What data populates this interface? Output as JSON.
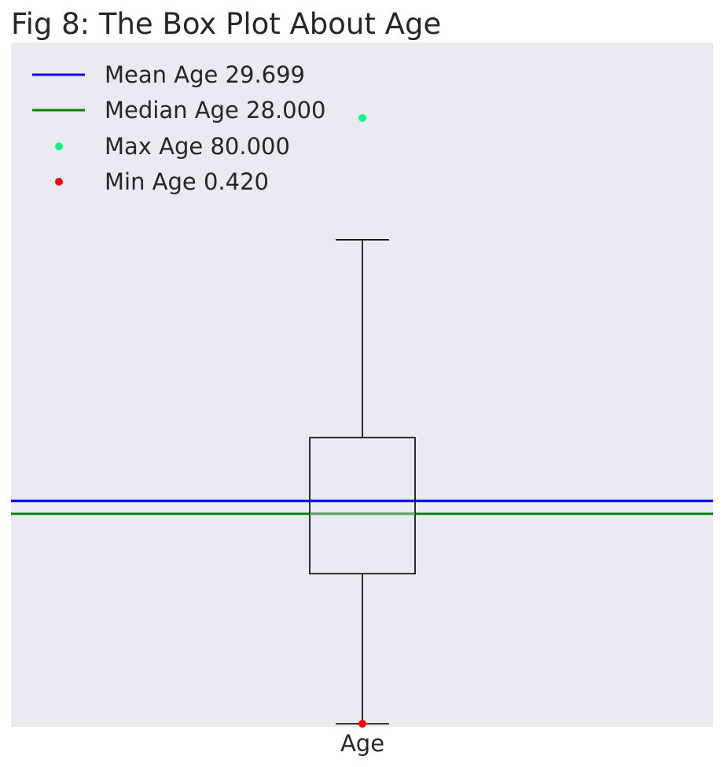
{
  "colors": {
    "plot_background": "#EAEAF2",
    "box_stroke": "#000000",
    "mean_line": "#0000FF",
    "median_line": "#008000",
    "max_marker": "#00FF7F",
    "min_marker": "#FF0000",
    "inner_median": "#6EA06E"
  },
  "chart_data": {
    "type": "box",
    "title": "Fig 8: The Box Plot About Age",
    "xlabel": "",
    "ylabel": "",
    "x_tick_labels": [
      "Age"
    ],
    "y_axis_visible": false,
    "grid": false,
    "legend_position": "top-left",
    "ylim": [
      0.42,
      80
    ],
    "box": {
      "category": "Age",
      "whisker_low": 0.42,
      "q1": 20.125,
      "median": 28.0,
      "q3": 38.0,
      "whisker_high": 64.0
    },
    "lines": [
      {
        "name": "Mean Age 29.699",
        "type": "hline",
        "value": 29.699,
        "color": "#0000FF"
      },
      {
        "name": "Median Age 28.000",
        "type": "hline",
        "value": 28.0,
        "color": "#008000"
      }
    ],
    "points": [
      {
        "name": "Max Age 80.000",
        "x": "Age",
        "y": 80.0,
        "color": "#00FF7F"
      },
      {
        "name": "Min Age 0.420",
        "x": "Age",
        "y": 0.42,
        "color": "#FF0000"
      }
    ],
    "legend": [
      {
        "label": "Mean Age 29.699",
        "marker": "line",
        "color": "#0000FF"
      },
      {
        "label": "Median Age 28.000",
        "marker": "line",
        "color": "#008000"
      },
      {
        "label": "Max Age 80.000",
        "marker": "dot",
        "color": "#00FF7F"
      },
      {
        "label": "Min Age 0.420",
        "marker": "dot",
        "color": "#FF0000"
      }
    ]
  }
}
